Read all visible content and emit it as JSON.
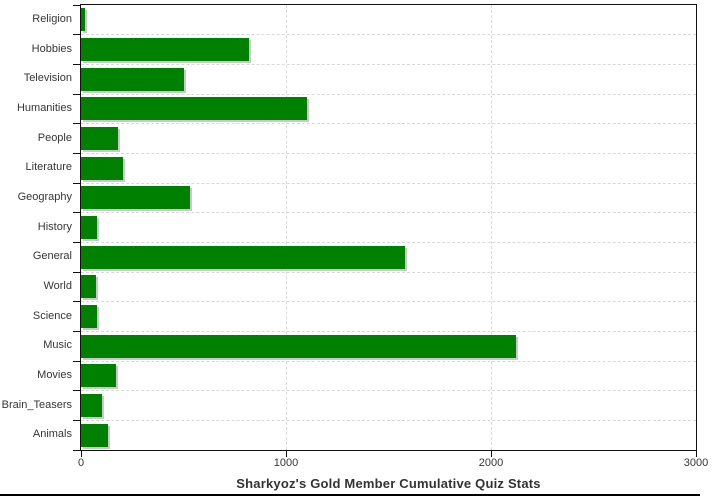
{
  "chart_data": {
    "type": "bar",
    "orientation": "horizontal",
    "title": "Sharkyoz's Gold Member Cumulative Quiz Stats",
    "categories": [
      "Religion",
      "Hobbies",
      "Television",
      "Humanities",
      "People",
      "Literature",
      "Geography",
      "History",
      "General",
      "World",
      "Science",
      "Music",
      "Movies",
      "Brain_Teasers",
      "Animals"
    ],
    "values": [
      20,
      820,
      500,
      1100,
      180,
      205,
      530,
      80,
      1580,
      75,
      80,
      2120,
      170,
      100,
      130
    ],
    "xlabel": "",
    "ylabel": "",
    "xlim": [
      0,
      3000
    ],
    "x_ticks": [
      "0",
      "1000",
      "2000",
      "3000"
    ],
    "x_tick_values": [
      0,
      1000,
      2000,
      3000
    ],
    "grid": "dashed, light gray, vertical at value ticks and horizontal at category boundaries",
    "legend": "none",
    "bar_color": "#008000",
    "bar_shadow_color": "#c9c9c9",
    "axis_color": "#111111",
    "label_color": "#363636",
    "title_color": "#333333",
    "background_color": "#ffffff"
  }
}
